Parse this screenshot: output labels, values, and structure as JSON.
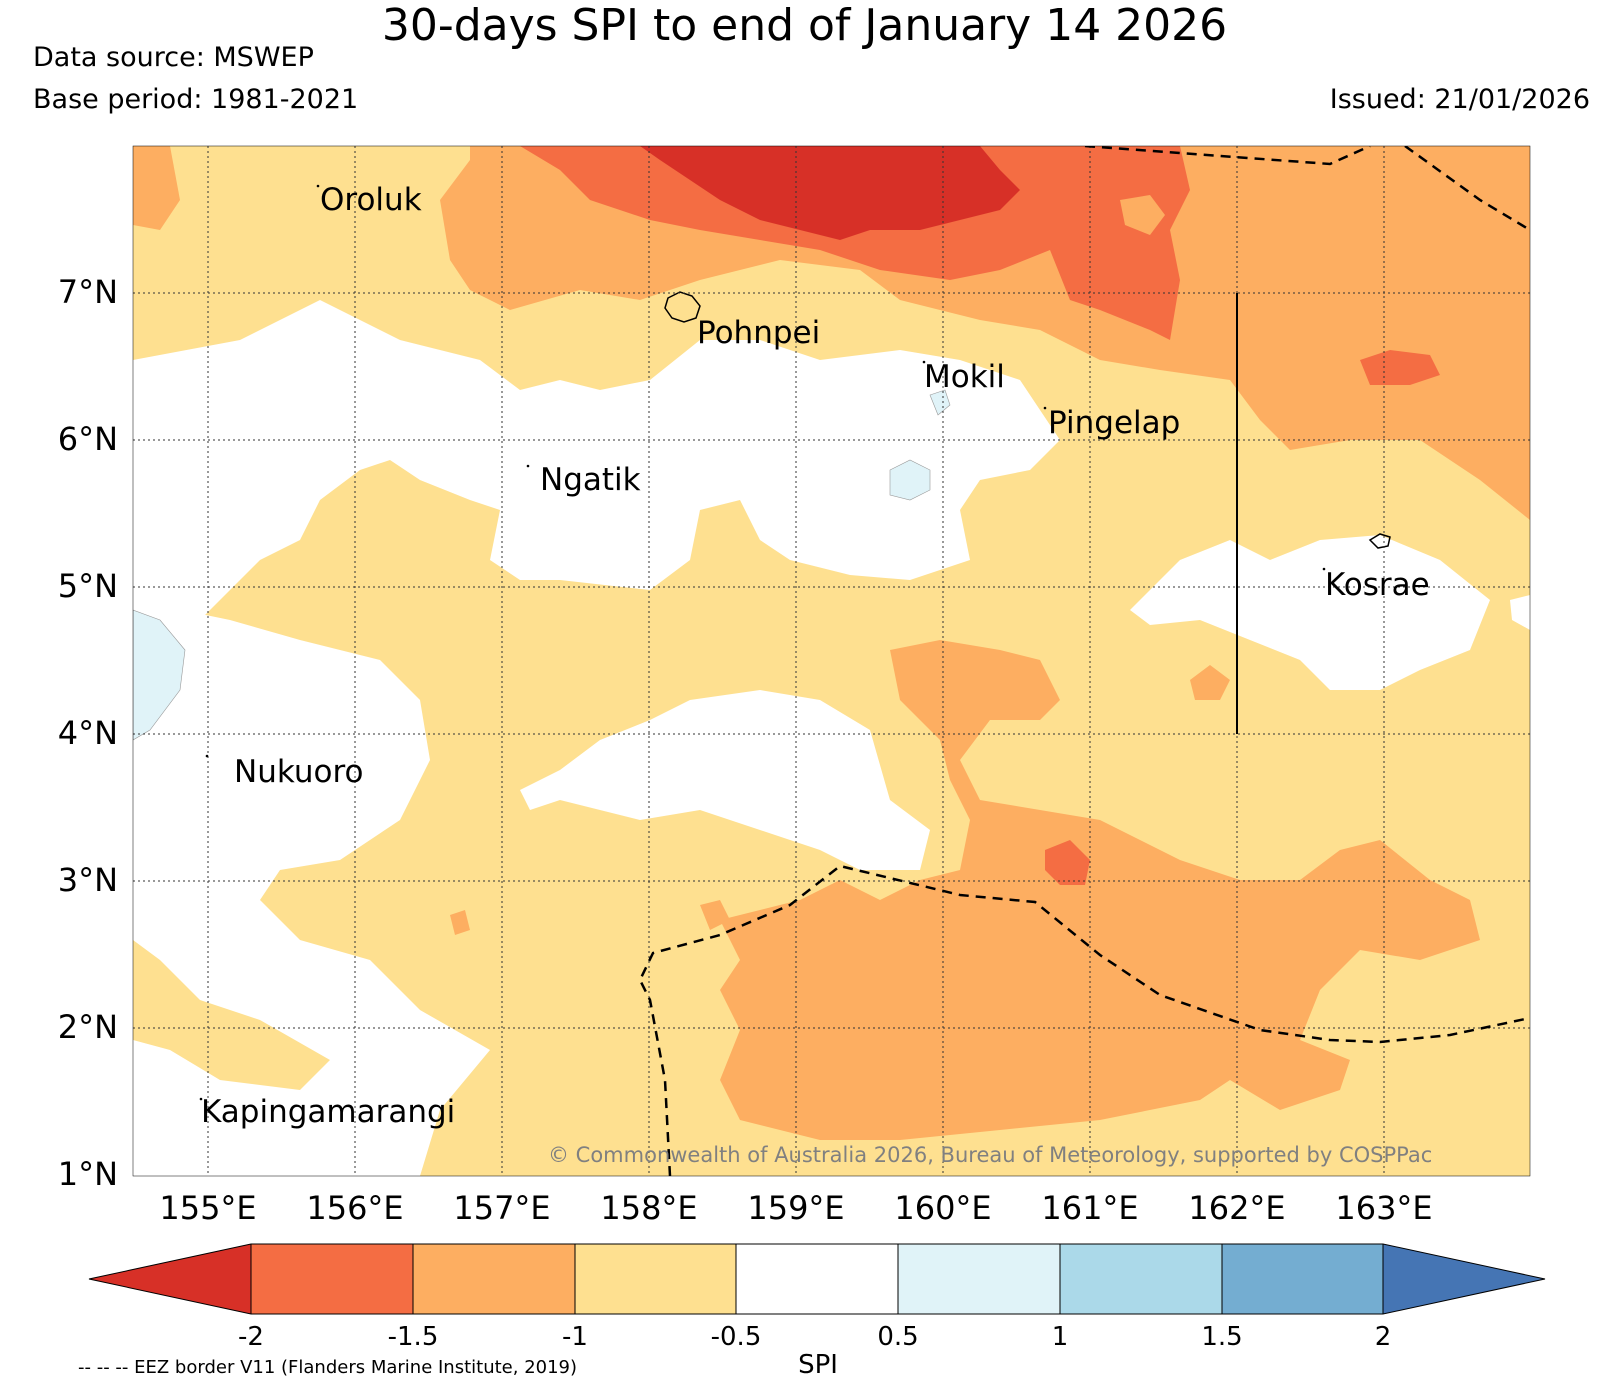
{
  "title": "30-days SPI to end of January 14 2026",
  "data_source": "Data source: MSWEP",
  "base_period": "Base period: 1981-2021",
  "issued": "Issued: 21/01/2026",
  "credit": "© Commonwealth of Australia 2026, Bureau of Meteorology, supported by COSPPac",
  "eez_note": "-- -- -- EEZ border V11 (Flanders Marine Institute, 2019)",
  "map": {
    "lat_labels": [
      "7°N",
      "6°N",
      "5°N",
      "4°N",
      "3°N",
      "2°N",
      "1°N"
    ],
    "lon_labels": [
      "155°E",
      "156°E",
      "157°E",
      "158°E",
      "159°E",
      "160°E",
      "161°E",
      "162°E",
      "163°E"
    ],
    "places": [
      "Oroluk",
      "Pohnpei",
      "Mokil",
      "Pingelap",
      "Ngatik",
      "Kosrae",
      "Nukuoro",
      "Kapingamarangi"
    ]
  },
  "colorbar": {
    "label": "SPI",
    "ticks": [
      "-2",
      "-1.5",
      "-1",
      "-0.5",
      "0.5",
      "1",
      "1.5",
      "2"
    ],
    "colors": {
      "lt_minus2": "#d73027",
      "minus2_to_minus1_5": "#f46d43",
      "minus1_5_to_minus1": "#fdae61",
      "minus1_to_minus0_5": "#fee090",
      "minus0_5_to_0_5": "#ffffff",
      "p0_5_to_1": "#e0f3f8",
      "p1_to_1_5": "#abd9e9",
      "p1_5_to_2": "#74add1",
      "gt_2": "#4575b4"
    }
  }
}
